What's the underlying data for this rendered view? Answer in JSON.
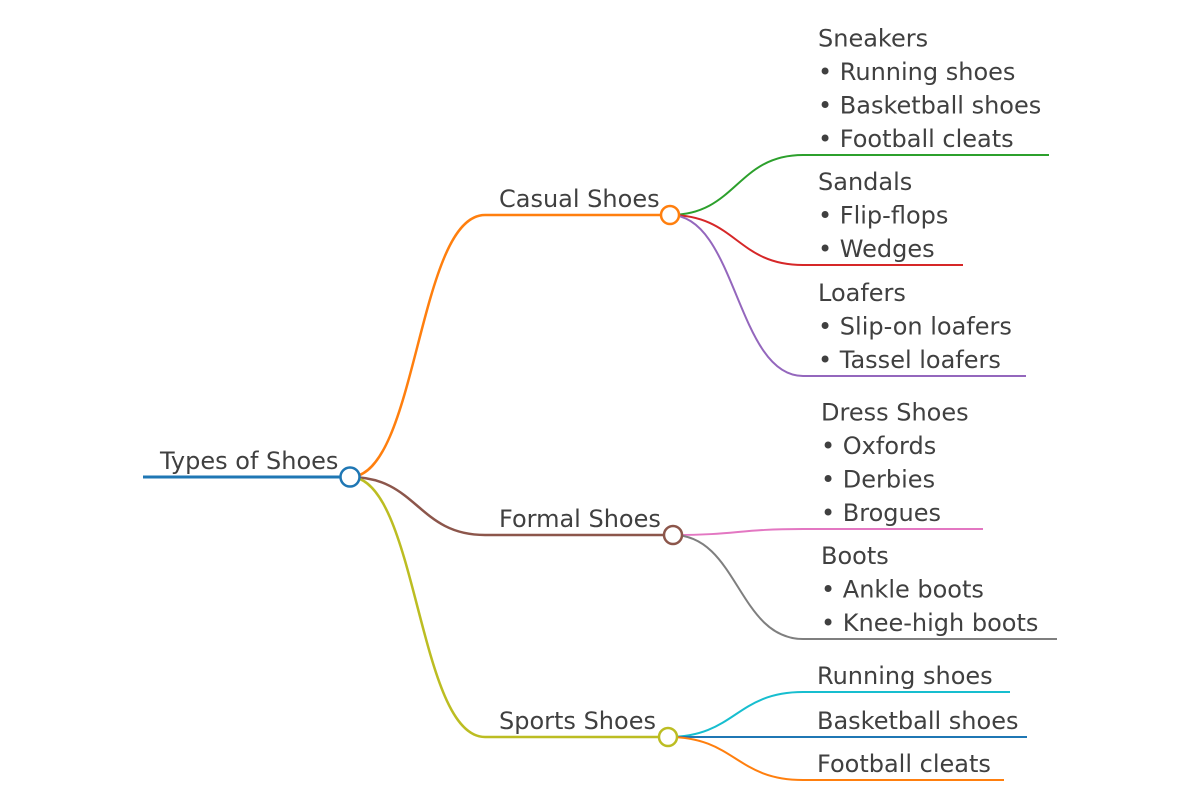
{
  "root": {
    "label": "Types of Shoes",
    "color": "#1f77b4"
  },
  "branches": [
    {
      "label": "Casual Shoes",
      "color": "#ff7f0e",
      "children": [
        {
          "lines": [
            "Sneakers",
            "• Running shoes",
            "• Basketball shoes",
            "• Football cleats"
          ],
          "color": "#2ca02c"
        },
        {
          "lines": [
            "Sandals",
            "• Flip-flops",
            "• Wedges"
          ],
          "color": "#d62728"
        },
        {
          "lines": [
            "Loafers",
            "• Slip-on loafers",
            "• Tassel loafers"
          ],
          "color": "#9467bd"
        }
      ]
    },
    {
      "label": "Formal Shoes",
      "color": "#8c564b",
      "children": [
        {
          "lines": [
            "Dress Shoes",
            "• Oxfords",
            "• Derbies",
            "• Brogues"
          ],
          "color": "#e377c2"
        },
        {
          "lines": [
            "Boots",
            "• Ankle boots",
            "• Knee-high boots"
          ],
          "color": "#7f7f7f"
        }
      ]
    },
    {
      "label": "Sports Shoes",
      "color": "#bcbd22",
      "children": [
        {
          "lines": [
            "Running shoes"
          ],
          "color": "#17becf"
        },
        {
          "lines": [
            "Basketball shoes"
          ],
          "color": "#1f77b4"
        },
        {
          "lines": [
            "Football cleats"
          ],
          "color": "#ff7f0e"
        }
      ]
    }
  ]
}
